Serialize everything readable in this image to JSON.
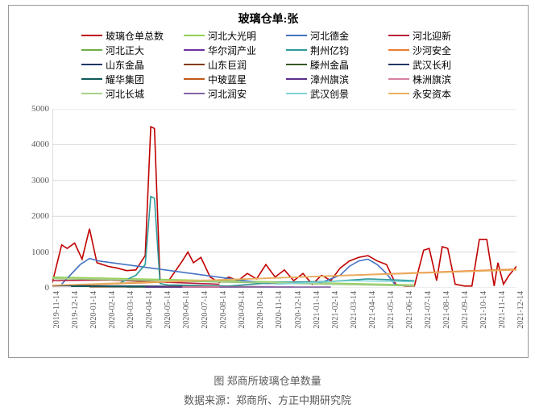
{
  "chart": {
    "type": "line",
    "title": "玻璃仓单:张",
    "title_fontsize": 14,
    "caption_fig": "图    郑商所玻璃仓单数量",
    "caption_src": "数据来源：郑商所、方正中期研究院",
    "background_color": "#ffffff",
    "grid_color": "#d9d9d9",
    "border_color": "#999999",
    "text_color": "#595959",
    "ylim": [
      0,
      5000
    ],
    "ytick_step": 1000,
    "yticks": [
      0,
      1000,
      2000,
      3000,
      4000,
      5000
    ],
    "xticks": [
      "2019-11-14",
      "2019-12-14",
      "2020-01-14",
      "2020-02-14",
      "2020-03-14",
      "2020-04-14",
      "2020-05-14",
      "2020-06-14",
      "2020-07-14",
      "2020-08-14",
      "2020-09-14",
      "2020-10-14",
      "2020-11-14",
      "2020-12-14",
      "2021-01-14",
      "2021-02-14",
      "2021-03-14",
      "2021-04-14",
      "2021-05-14",
      "2021-06-14",
      "2021-07-14",
      "2021-08-14",
      "2021-09-14",
      "2021-10-14",
      "2021-11-14",
      "2021-12-14"
    ],
    "legend_cols": 4,
    "series_names": [
      "玻璃仓单总数",
      "河北大光明",
      "河北德金",
      "河北迎新",
      "河北正大",
      "华尔润产业",
      "荆州亿钧",
      "沙河安全",
      "山东金晶",
      "山东巨润",
      "滕州金晶",
      "武汉长利",
      "耀华集团",
      "中玻蓝星",
      "漳州旗滨",
      "株洲旗滨",
      "河北长城",
      "河北润安",
      "武汉创景",
      "永安资本"
    ],
    "series_colors": [
      "#c00000",
      "#92d050",
      "#4472c4",
      "#b71f3a",
      "#70ad47",
      "#7030a0",
      "#2e9999",
      "#ed7d31",
      "#1f3864",
      "#833c0c",
      "#385723",
      "#203864",
      "#0f5b5b",
      "#bf5b17",
      "#5b2f8a",
      "#d77fa1",
      "#a9d18e",
      "#8064a2",
      "#7dd3d8",
      "#e8b060"
    ],
    "line_width": 1.6,
    "series_data": {
      "玻璃仓单总数": [
        {
          "x": 0,
          "y": 150
        },
        {
          "x": 0.5,
          "y": 1200
        },
        {
          "x": 0.8,
          "y": 1100
        },
        {
          "x": 1.2,
          "y": 1250
        },
        {
          "x": 1.6,
          "y": 800
        },
        {
          "x": 2.0,
          "y": 1650
        },
        {
          "x": 2.4,
          "y": 700
        },
        {
          "x": 3.0,
          "y": 600
        },
        {
          "x": 3.5,
          "y": 550
        },
        {
          "x": 4.0,
          "y": 480
        },
        {
          "x": 4.5,
          "y": 500
        },
        {
          "x": 5.0,
          "y": 900
        },
        {
          "x": 5.3,
          "y": 4500
        },
        {
          "x": 5.5,
          "y": 4450
        },
        {
          "x": 5.8,
          "y": 200
        },
        {
          "x": 6.2,
          "y": 150
        },
        {
          "x": 7.0,
          "y": 750
        },
        {
          "x": 7.3,
          "y": 1000
        },
        {
          "x": 7.6,
          "y": 700
        },
        {
          "x": 8.0,
          "y": 850
        },
        {
          "x": 8.5,
          "y": 300
        },
        {
          "x": 9.0,
          "y": 150
        },
        {
          "x": 9.5,
          "y": 300
        },
        {
          "x": 10.0,
          "y": 200
        },
        {
          "x": 10.5,
          "y": 400
        },
        {
          "x": 11.0,
          "y": 250
        },
        {
          "x": 11.5,
          "y": 650
        },
        {
          "x": 12.0,
          "y": 300
        },
        {
          "x": 12.5,
          "y": 500
        },
        {
          "x": 13.0,
          "y": 200
        },
        {
          "x": 13.5,
          "y": 400
        },
        {
          "x": 14.0,
          "y": 100
        },
        {
          "x": 14.5,
          "y": 350
        },
        {
          "x": 15.0,
          "y": 200
        },
        {
          "x": 15.5,
          "y": 550
        },
        {
          "x": 16.0,
          "y": 750
        },
        {
          "x": 16.5,
          "y": 850
        },
        {
          "x": 17.0,
          "y": 900
        },
        {
          "x": 17.5,
          "y": 750
        },
        {
          "x": 18.0,
          "y": 650
        },
        {
          "x": 18.5,
          "y": 100
        },
        {
          "x": 19.0,
          "y": 50
        },
        {
          "x": 19.5,
          "y": 50
        },
        {
          "x": 20.0,
          "y": 1050
        },
        {
          "x": 20.3,
          "y": 1100
        },
        {
          "x": 20.7,
          "y": 200
        },
        {
          "x": 21.0,
          "y": 1150
        },
        {
          "x": 21.3,
          "y": 1100
        },
        {
          "x": 21.7,
          "y": 100
        },
        {
          "x": 22.2,
          "y": 50
        },
        {
          "x": 22.6,
          "y": 50
        },
        {
          "x": 23.0,
          "y": 1350
        },
        {
          "x": 23.4,
          "y": 1350
        },
        {
          "x": 23.8,
          "y": 50
        },
        {
          "x": 24.0,
          "y": 700
        },
        {
          "x": 24.3,
          "y": 100
        },
        {
          "x": 24.6,
          "y": 350
        },
        {
          "x": 25.0,
          "y": 600
        }
      ],
      "河北大光明": [
        {
          "x": 0,
          "y": 300
        },
        {
          "x": 19.5,
          "y": 80
        }
      ],
      "河北德金": [
        {
          "x": 0.5,
          "y": 100
        },
        {
          "x": 1.5,
          "y": 650
        },
        {
          "x": 2.0,
          "y": 820
        },
        {
          "x": 2.5,
          "y": 750
        },
        {
          "x": 11.5,
          "y": 120
        },
        {
          "x": 14.5,
          "y": 150
        },
        {
          "x": 15.5,
          "y": 350
        },
        {
          "x": 16.0,
          "y": 600
        },
        {
          "x": 16.5,
          "y": 750
        },
        {
          "x": 17.0,
          "y": 800
        },
        {
          "x": 17.5,
          "y": 650
        },
        {
          "x": 18.0,
          "y": 400
        },
        {
          "x": 18.5,
          "y": 60
        }
      ],
      "河北迎新": [
        {
          "x": 0,
          "y": 200
        },
        {
          "x": 3,
          "y": 220
        },
        {
          "x": 9,
          "y": 100
        }
      ],
      "河北正大": [
        {
          "x": 0,
          "y": 260
        },
        {
          "x": 19.5,
          "y": 55
        }
      ],
      "华尔润产业": [
        {
          "x": 8,
          "y": 40
        },
        {
          "x": 12,
          "y": 30
        }
      ],
      "荆州亿钧": [
        {
          "x": 3.5,
          "y": 100
        },
        {
          "x": 4.5,
          "y": 350
        },
        {
          "x": 5.0,
          "y": 650
        },
        {
          "x": 5.3,
          "y": 2550
        },
        {
          "x": 5.5,
          "y": 2500
        },
        {
          "x": 5.8,
          "y": 120
        },
        {
          "x": 6.2,
          "y": 80
        },
        {
          "x": 9.5,
          "y": 50
        },
        {
          "x": 12,
          "y": 150
        },
        {
          "x": 15,
          "y": 180
        },
        {
          "x": 17,
          "y": 250
        },
        {
          "x": 19.5,
          "y": 200
        }
      ],
      "沙河安全": [
        {
          "x": 0,
          "y": 50
        },
        {
          "x": 25,
          "y": 520
        }
      ],
      "山东金晶": [
        {
          "x": 0,
          "y": 60
        },
        {
          "x": 7,
          "y": 40
        }
      ],
      "山东巨润": [
        {
          "x": 2,
          "y": 30
        },
        {
          "x": 6,
          "y": 30
        }
      ],
      "滕州金晶": [
        {
          "x": 4,
          "y": 25
        },
        {
          "x": 9,
          "y": 25
        }
      ],
      "武汉长利": [
        {
          "x": 3,
          "y": 35
        },
        {
          "x": 8,
          "y": 35
        }
      ],
      "耀华集团": [
        {
          "x": 1,
          "y": 40
        },
        {
          "x": 5,
          "y": 40
        }
      ],
      "中玻蓝星": [
        {
          "x": 6,
          "y": 30
        },
        {
          "x": 11,
          "y": 30
        }
      ],
      "漳州旗滨": [
        {
          "x": 5,
          "y": 20
        },
        {
          "x": 10,
          "y": 20
        }
      ],
      "株洲旗滨": [
        {
          "x": 7,
          "y": 25
        },
        {
          "x": 13,
          "y": 25
        }
      ],
      "河北长城": [
        {
          "x": 0,
          "y": 270
        },
        {
          "x": 19.5,
          "y": 65
        }
      ],
      "河北润安": [
        {
          "x": 9,
          "y": 20
        },
        {
          "x": 15,
          "y": 20
        }
      ],
      "武汉创景": [
        {
          "x": 12,
          "y": 100
        },
        {
          "x": 16,
          "y": 200
        },
        {
          "x": 19.5,
          "y": 170
        }
      ],
      "永安资本": [
        {
          "x": 0,
          "y": 70
        },
        {
          "x": 25,
          "y": 500
        }
      ]
    }
  }
}
